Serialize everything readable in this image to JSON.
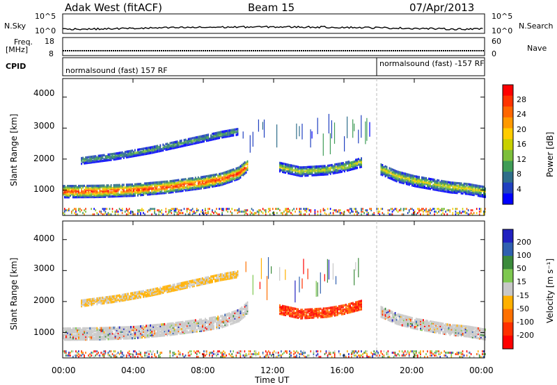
{
  "header": {
    "title_left": "Adak West (fitACF)",
    "title_center": "Beam 15",
    "title_right": "07/Apr/2013"
  },
  "panels": {
    "nsky": {
      "label": "N.Sky",
      "right_label": "N.Search",
      "left_ticks": [
        "10^5",
        "10^0"
      ],
      "right_ticks": [
        "10^5",
        "10^0"
      ]
    },
    "freq": {
      "label_line1": "Freq.",
      "label_line2": "[MHz]",
      "left_ticks": [
        "18",
        "8"
      ],
      "right_ticks": [
        "60",
        "0"
      ],
      "right_label": "Nave"
    },
    "cpid": {
      "label": "CPID",
      "mode1": "normalsound (fast) 157 RF",
      "mode2": "normalsound (fast) -157 RF"
    }
  },
  "chart_data": [
    {
      "type": "heatmap",
      "name": "power",
      "ylabel": "Slant Range [km]",
      "yticks": [
        1000,
        2000,
        3000,
        4000
      ],
      "ylim": [
        180,
        4600
      ],
      "xlim": [
        0,
        24
      ],
      "colorbar": {
        "label": "Power [dB]",
        "ticks": [
          "28",
          "24",
          "20",
          "16",
          "12",
          "8",
          "4"
        ],
        "colors": [
          "#ff0000",
          "#ff3300",
          "#ff6600",
          "#ff9900",
          "#ffcc00",
          "#c8d000",
          "#7dbf3b",
          "#3f9c57",
          "#2f6e8a",
          "#2040c0",
          "#0000ff"
        ]
      },
      "features": [
        {
          "name": "main-band",
          "t": [
            0,
            2,
            4,
            6,
            8,
            9,
            10,
            10.5
          ],
          "r": [
            950,
            960,
            1000,
            1100,
            1250,
            1350,
            1550,
            1800
          ]
        },
        {
          "name": "upper-band",
          "t": [
            1,
            3,
            5,
            7,
            9,
            10
          ],
          "r": [
            1950,
            2100,
            2300,
            2550,
            2800,
            2900
          ]
        },
        {
          "name": "midday-band",
          "t": [
            12.3,
            13.5,
            15,
            16,
            17
          ],
          "r": [
            1750,
            1600,
            1650,
            1750,
            1900
          ]
        },
        {
          "name": "evening-band",
          "t": [
            18,
            19,
            20,
            21,
            22,
            23,
            24
          ],
          "r": [
            1700,
            1450,
            1300,
            1200,
            1100,
            1050,
            950
          ]
        }
      ]
    },
    {
      "type": "heatmap",
      "name": "velocity",
      "ylabel": "Slant Range [km]",
      "yticks": [
        1000,
        2000,
        3000,
        4000
      ],
      "ylim": [
        180,
        4600
      ],
      "xlim": [
        0,
        24
      ],
      "colorbar": {
        "label": "Velocity [m s⁻¹]",
        "ticks": [
          "200",
          "100",
          "50",
          "15",
          "-15",
          "-50",
          "-100",
          "-200"
        ],
        "colors": [
          "#2020c0",
          "#3060b0",
          "#3b8a3b",
          "#7ec850",
          "#c8c8c8",
          "#ffb000",
          "#ff7000",
          "#ff3000",
          "#ff0000"
        ]
      },
      "xticks": [
        "00:00",
        "04:00",
        "08:00",
        "12:00",
        "16:00",
        "20:00",
        "00:00"
      ],
      "xlabel": "Time UT"
    }
  ]
}
